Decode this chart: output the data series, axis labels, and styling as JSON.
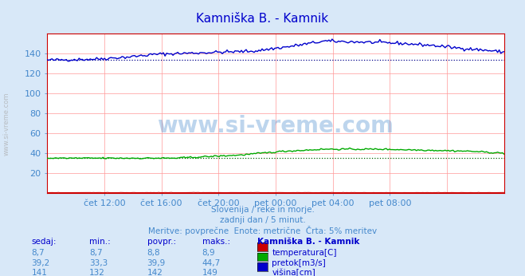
{
  "title": "Kamniška B. - Kamnik",
  "title_color": "#0000cc",
  "bg_color": "#d8e8f8",
  "plot_bg_color": "#ffffff",
  "grid_color": "#ff9999",
  "avg_line_color_blue": "#00008b",
  "avg_line_color_green": "#006400",
  "x_label_color": "#4488cc",
  "y_label_color": "#4488cc",
  "x_tick_labels": [
    "čet 12:00",
    "čet 16:00",
    "čet 20:00",
    "pet 00:00",
    "pet 04:00",
    "pet 08:00"
  ],
  "x_tick_positions": [
    0.125,
    0.25,
    0.375,
    0.5,
    0.625,
    0.75
  ],
  "ylim": [
    0,
    160
  ],
  "yticks": [
    20,
    40,
    60,
    80,
    100,
    120,
    140
  ],
  "n_points": 288,
  "blue_avg": 133,
  "green_avg": 35,
  "temperature_color": "#cc0000",
  "pretok_color": "#00aa00",
  "visina_color": "#0000cc",
  "watermark": "www.si-vreme.com",
  "subtitle1": "Slovenija / reke in morje.",
  "subtitle2": "zadnji dan / 5 minut.",
  "subtitle3": "Meritve: povprečne  Enote: metrične  Črta: 5% meritev",
  "subtitle_color": "#4488cc",
  "table_header": [
    "sedaj:",
    "min.:",
    "povpr.:",
    "maks.:",
    "Kamniška B. - Kamnik"
  ],
  "table_data": [
    [
      "8,7",
      "8,7",
      "8,8",
      "8,9",
      "temperatura[C]",
      "#cc0000"
    ],
    [
      "39,2",
      "33,3",
      "39,9",
      "44,7",
      "pretok[m3/s]",
      "#00aa00"
    ],
    [
      "141",
      "132",
      "142",
      "149",
      "višina[cm]",
      "#0000cc"
    ]
  ]
}
